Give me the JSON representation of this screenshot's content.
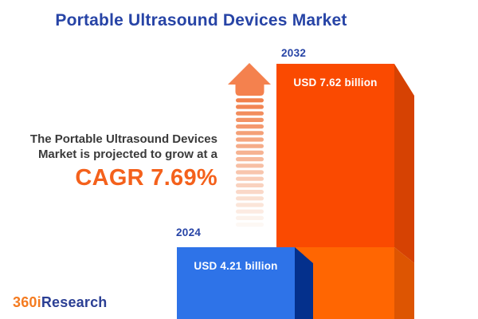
{
  "header": {
    "title": "Portable Ultrasound Devices Market",
    "title_color": "#2744A6"
  },
  "callout": {
    "line1": "The Portable Ultrasound Devices",
    "line2": "Market is projected to grow at a",
    "cagr_label": "CAGR 7.69%",
    "cagr_color": "#F4611C",
    "text_color": "#3A3A3A"
  },
  "bars": {
    "start": {
      "year": "2024",
      "value_label": "USD 4.21 billion",
      "front_color": "#2E73E8",
      "side_color": "#04308C"
    },
    "end": {
      "year": "2032",
      "value_label": "USD 7.62 billion",
      "front_color_top": "#FA4A01",
      "front_color_bottom": "#FF6602",
      "side_color_top": "#D64203",
      "side_color_bottom": "#DD5502"
    }
  },
  "arrow": {
    "head_color": "#F4814E",
    "stripe_color_start": "#F1804B",
    "stripe_color_end": "#FDF8F4",
    "stripe_count": 20
  },
  "logo": {
    "part1": "360i",
    "part2": "Research",
    "part1_color": "#F47B20",
    "part2_color": "#2B3F94"
  },
  "chart_data": {
    "type": "bar",
    "title": "Portable Ultrasound Devices Market",
    "categories": [
      "2024",
      "2032"
    ],
    "values": [
      4.21,
      7.62
    ],
    "unit": "USD billion",
    "value_labels": [
      "USD 4.21 billion",
      "USD 7.62 billion"
    ],
    "cagr": "7.69%",
    "annotation": "The Portable Ultrasound Devices Market is projected to grow at a CAGR 7.69%",
    "xlabel": "",
    "ylabel": "",
    "legend": "none",
    "grid": false,
    "series": [
      {
        "name": "Portable Ultrasound Devices Market size",
        "values": [
          4.21,
          7.62
        ]
      }
    ]
  }
}
